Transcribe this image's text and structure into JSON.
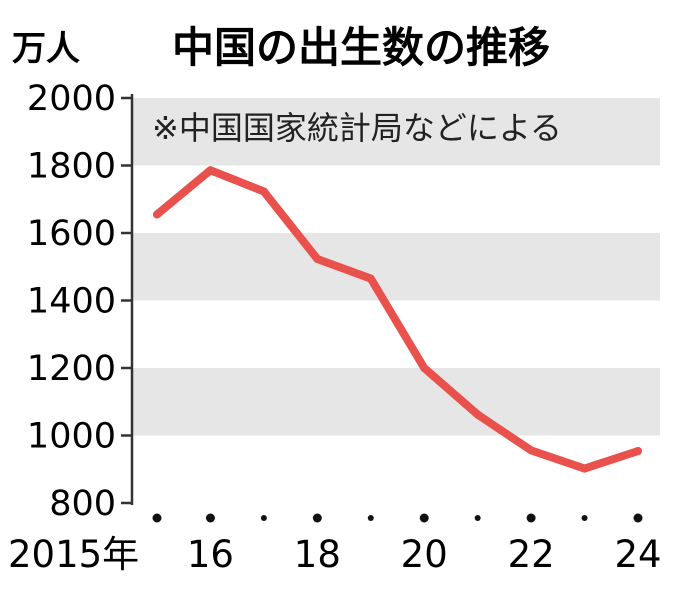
{
  "unit_label": "万人",
  "chart_data": {
    "type": "line",
    "title": "中国の出生数の推移",
    "note": "※中国国家統計局などによる",
    "xlabel": "",
    "ylabel": "万人",
    "ylim": [
      800,
      2000
    ],
    "y_ticks": [
      800,
      1000,
      1200,
      1400,
      1600,
      1800,
      2000
    ],
    "x": [
      2015,
      2016,
      2017,
      2018,
      2019,
      2020,
      2021,
      2022,
      2023,
      2024
    ],
    "x_tick_labels": [
      {
        "x": 2015,
        "label": "2015年"
      },
      {
        "x": 2016,
        "label": "16"
      },
      {
        "x": 2018,
        "label": "18"
      },
      {
        "x": 2020,
        "label": "20"
      },
      {
        "x": 2022,
        "label": "22"
      },
      {
        "x": 2024,
        "label": "24"
      }
    ],
    "series": [
      {
        "values": [
          1655,
          1786,
          1723,
          1523,
          1465,
          1200,
          1062,
          956,
          902,
          954
        ]
      }
    ],
    "grid": "alternating horizontal bands",
    "colors": {
      "line": "#e8514c",
      "band": "#e6e6e6",
      "axis": "#333333",
      "text": "#111111"
    }
  }
}
